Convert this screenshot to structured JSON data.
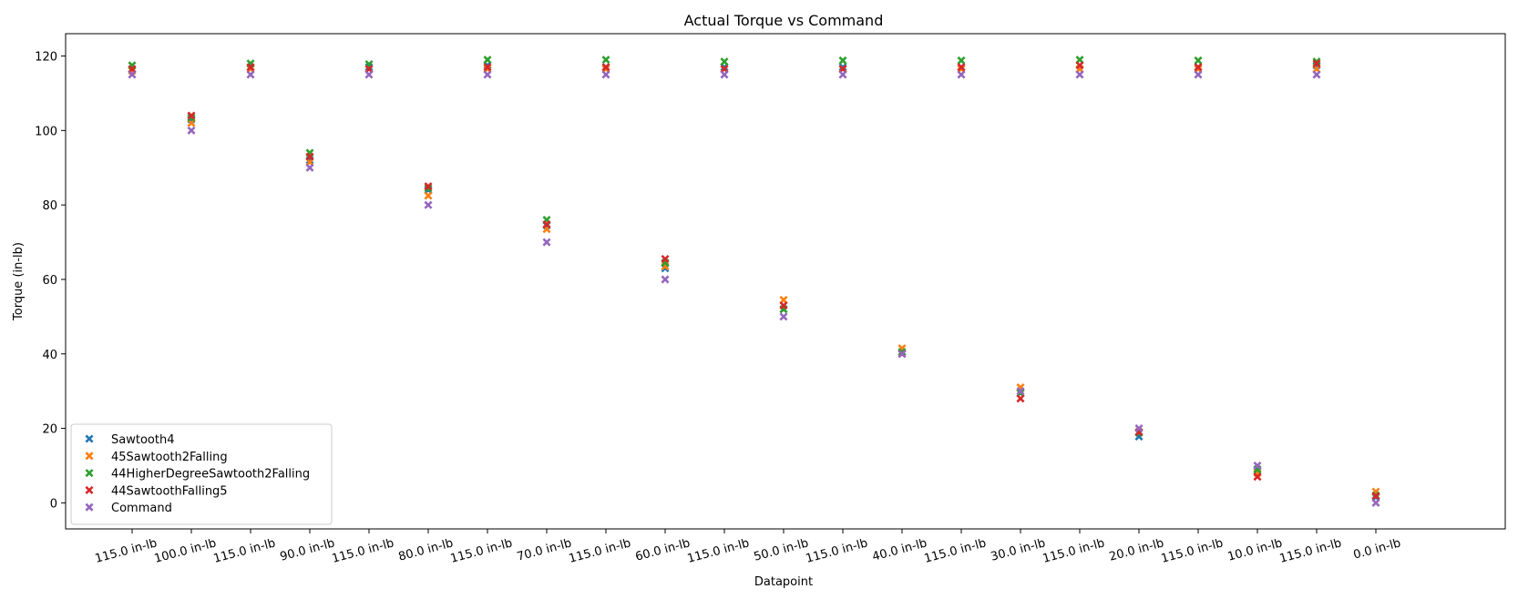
{
  "chart_data": {
    "type": "scatter",
    "title": "Actual Torque vs Command",
    "xlabel": "Datapoint",
    "ylabel": "Torque (in-lb)",
    "ylim": [
      -7,
      126
    ],
    "yticks": [
      0,
      20,
      40,
      60,
      80,
      100,
      120
    ],
    "grid": false,
    "legend_position": "lower-left",
    "marker": "x",
    "categories": [
      "115.0 in-lb",
      "100.0 in-lb",
      "115.0 in-lb",
      "90.0 in-lb",
      "115.0 in-lb",
      "80.0 in-lb",
      "115.0 in-lb",
      "70.0 in-lb",
      "115.0 in-lb",
      "60.0 in-lb",
      "115.0 in-lb",
      "50.0 in-lb",
      "115.0 in-lb",
      "40.0 in-lb",
      "115.0 in-lb",
      "30.0 in-lb",
      "115.0 in-lb",
      "20.0 in-lb",
      "115.0 in-lb",
      "10.0 in-lb",
      "115.0 in-lb",
      "0.0 in-lb"
    ],
    "series": [
      {
        "name": "Sawtooth4",
        "color": "#1f77b4",
        "values": [
          116.5,
          103.0,
          117.0,
          92.0,
          117.0,
          84.0,
          117.5,
          74.5,
          117.0,
          63.0,
          117.0,
          52.0,
          117.0,
          40.5,
          117.0,
          29.5,
          116.5,
          17.8,
          117.0,
          8.5,
          117.5,
          1.5
        ]
      },
      {
        "name": "45Sawtooth2Falling",
        "color": "#ff7f0e",
        "values": [
          116.0,
          102.0,
          116.5,
          91.5,
          116.5,
          82.5,
          116.5,
          73.5,
          116.5,
          63.5,
          116.5,
          54.5,
          116.5,
          41.5,
          116.5,
          31.0,
          116.5,
          19.0,
          116.5,
          8.0,
          116.5,
          3.0
        ]
      },
      {
        "name": "44HigherDegreeSawtooth2Falling",
        "color": "#2ca02c",
        "values": [
          117.5,
          103.5,
          118.0,
          94.0,
          117.8,
          84.5,
          119.0,
          76.0,
          119.0,
          64.5,
          118.5,
          52.0,
          118.8,
          40.5,
          118.8,
          29.5,
          119.0,
          18.8,
          118.8,
          9.0,
          118.5,
          2.0
        ]
      },
      {
        "name": "44SawtoothFalling5",
        "color": "#d62728",
        "values": [
          116.5,
          104.0,
          117.0,
          93.0,
          116.5,
          85.0,
          117.0,
          74.8,
          117.0,
          65.5,
          116.5,
          53.0,
          116.5,
          40.0,
          117.0,
          28.0,
          117.5,
          19.0,
          117.0,
          7.0,
          118.0,
          1.8
        ]
      },
      {
        "name": "Command",
        "color": "#9467bd",
        "values": [
          115.0,
          100.0,
          115.0,
          90.0,
          115.0,
          80.0,
          115.0,
          70.0,
          115.0,
          60.0,
          115.0,
          50.0,
          115.0,
          40.0,
          115.0,
          30.0,
          115.0,
          20.0,
          115.0,
          10.0,
          115.0,
          0.0
        ]
      }
    ]
  }
}
